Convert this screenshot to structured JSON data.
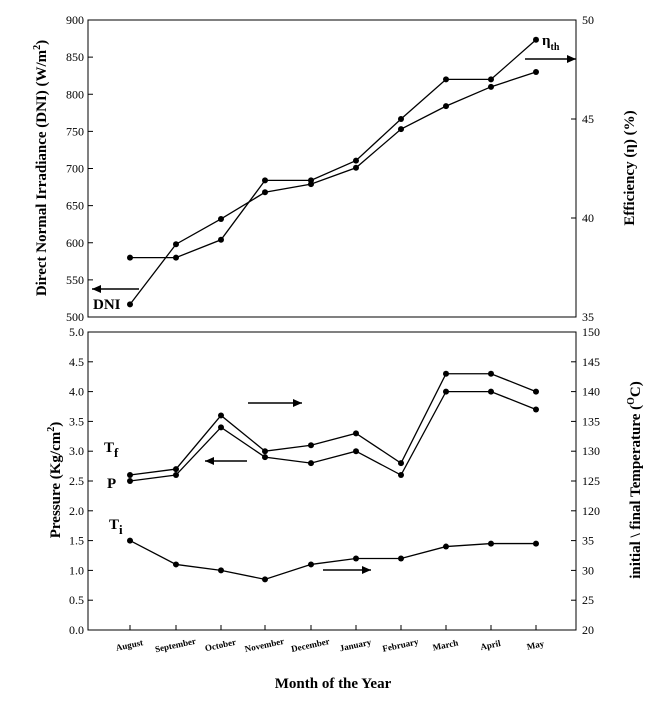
{
  "chart_data": [
    {
      "type": "line",
      "panel": "top",
      "categories": [
        "August",
        "September",
        "October",
        "November",
        "December",
        "January",
        "February",
        "March",
        "April",
        "May"
      ],
      "y_left": {
        "label": "Direct Normal Irradiance (DNI) (W/m",
        "label_sup": "2",
        "label_end": ")",
        "ylim": [
          500,
          900
        ],
        "ticks": [
          500,
          550,
          600,
          650,
          700,
          750,
          800,
          850,
          900
        ]
      },
      "y_right": {
        "label": "Efficiency (η) (%)",
        "ylim": [
          35,
          50
        ],
        "ticks": [
          35,
          40,
          45,
          50
        ]
      },
      "series": [
        {
          "name": "DNI",
          "axis": "left",
          "values": [
            517,
            598,
            632,
            668,
            679,
            701,
            753,
            784,
            810,
            830
          ]
        },
        {
          "name": "η_th",
          "axis": "right",
          "values": [
            38.0,
            38.0,
            38.9,
            41.9,
            41.9,
            42.9,
            45.0,
            47.0,
            47.0,
            49.0
          ]
        }
      ],
      "annotations": [
        {
          "text": "DNI",
          "arrow": "left"
        },
        {
          "text": "η",
          "sub": "th",
          "arrow": "right"
        }
      ]
    },
    {
      "type": "line",
      "panel": "bottom",
      "categories": [
        "August",
        "September",
        "October",
        "November",
        "December",
        "January",
        "February",
        "March",
        "April",
        "May"
      ],
      "y_left": {
        "label": "Pressure (Kg/cm",
        "label_sup": "2",
        "label_end": ")",
        "ylim": [
          0.0,
          5.0
        ],
        "ticks": [
          "0.0",
          "0.5",
          "1.0",
          "1.5",
          "2.0",
          "2.5",
          "3.0",
          "3.5",
          "4.0",
          "4.5",
          "5.0"
        ]
      },
      "y_right": {
        "label": "initial \\ final Temperature (",
        "label_sup": "O",
        "label_end": "C)",
        "ylim": [
          20,
          150
        ],
        "ticks": [
          20,
          25,
          30,
          35,
          120,
          125,
          130,
          135,
          140,
          145,
          150
        ]
      },
      "series": [
        {
          "name": "T",
          "sub": "f",
          "axis": "right",
          "values": [
            126,
            127,
            136,
            130,
            131,
            133,
            128,
            143,
            143,
            140
          ]
        },
        {
          "name": "P",
          "axis": "left",
          "values": [
            2.5,
            2.6,
            3.4,
            2.9,
            2.8,
            3.0,
            2.6,
            4.0,
            4.0,
            3.7
          ]
        },
        {
          "name": "T",
          "sub": "i",
          "axis": "right",
          "values": [
            35,
            31,
            30,
            28.5,
            31,
            32,
            32,
            34,
            34.5,
            34.5
          ]
        }
      ],
      "annotations": [
        {
          "text": "arrow-right-Tf",
          "arrow": "right"
        },
        {
          "text": "arrow-left-P",
          "arrow": "left"
        },
        {
          "text": "arrow-right-Ti",
          "arrow": "right"
        }
      ]
    }
  ],
  "xlabel": "Month of the Year"
}
